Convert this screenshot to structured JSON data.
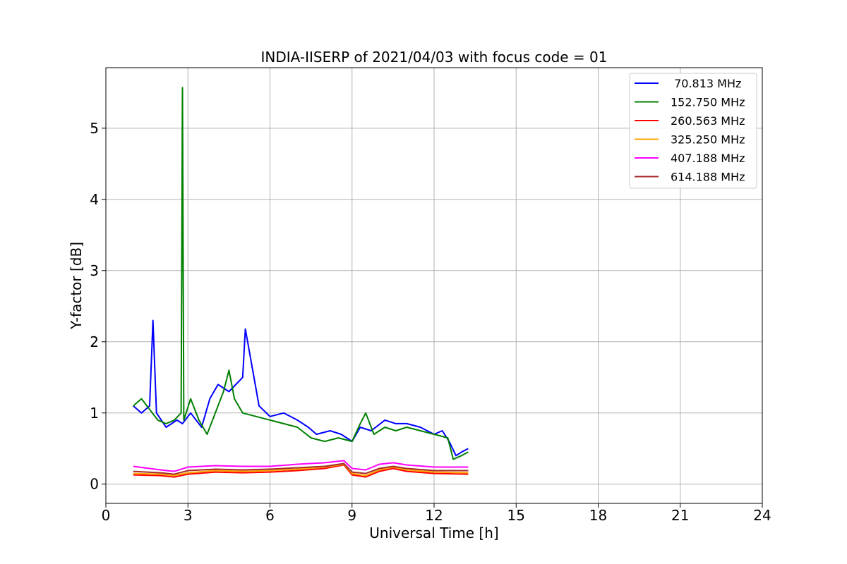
{
  "chart_data": {
    "type": "line",
    "title": "INDIA-IISERP of 2021/04/03 with focus code = 01",
    "xlabel": "Universal Time [h]",
    "ylabel": "Y-factor [dB]",
    "xlim": [
      0,
      24
    ],
    "ylim": [
      -0.27,
      5.85
    ],
    "xticks": [
      0,
      3,
      6,
      9,
      12,
      15,
      18,
      21,
      24
    ],
    "yticks": [
      0,
      1,
      2,
      3,
      4,
      5
    ],
    "grid": true,
    "legend_position": "top-right",
    "series": [
      {
        "name": " 70.813 MHz",
        "color": "#0000ff",
        "x": [
          1.0,
          1.3,
          1.6,
          1.72,
          1.85,
          2.2,
          2.6,
          2.8,
          3.1,
          3.5,
          3.8,
          4.1,
          4.5,
          5.0,
          5.1,
          5.6,
          6.0,
          6.5,
          7.0,
          7.4,
          7.7,
          8.2,
          8.6,
          9.0,
          9.3,
          9.7,
          10.2,
          10.6,
          11.0,
          11.5,
          12.0,
          12.3,
          12.55,
          12.8,
          13.0,
          13.25
        ],
        "y": [
          1.1,
          1.0,
          1.1,
          2.3,
          1.0,
          0.8,
          0.9,
          0.85,
          1.0,
          0.8,
          1.2,
          1.4,
          1.3,
          1.5,
          2.18,
          1.1,
          0.95,
          1.0,
          0.9,
          0.8,
          0.7,
          0.75,
          0.7,
          0.6,
          0.8,
          0.75,
          0.9,
          0.85,
          0.85,
          0.8,
          0.7,
          0.75,
          0.6,
          0.4,
          0.45,
          0.5
        ]
      },
      {
        "name": "152.750 MHz",
        "color": "#008000",
        "x": [
          1.0,
          1.3,
          1.6,
          1.9,
          2.2,
          2.5,
          2.75,
          2.8,
          2.85,
          3.1,
          3.4,
          3.7,
          4.0,
          4.3,
          4.5,
          4.7,
          5.0,
          5.5,
          6.0,
          6.5,
          7.0,
          7.5,
          8.0,
          8.5,
          9.0,
          9.3,
          9.5,
          9.8,
          10.2,
          10.6,
          11.0,
          11.5,
          12.0,
          12.5,
          12.7,
          13.0,
          13.25
        ],
        "y": [
          1.1,
          1.2,
          1.05,
          0.9,
          0.85,
          0.9,
          1.0,
          5.57,
          0.9,
          1.2,
          0.9,
          0.7,
          1.0,
          1.3,
          1.6,
          1.2,
          1.0,
          0.95,
          0.9,
          0.85,
          0.8,
          0.65,
          0.6,
          0.65,
          0.6,
          0.85,
          1.0,
          0.7,
          0.8,
          0.75,
          0.8,
          0.75,
          0.7,
          0.65,
          0.35,
          0.4,
          0.45
        ]
      },
      {
        "name": "260.563 MHz",
        "color": "#ff0000",
        "x": [
          1.0,
          2.0,
          2.5,
          3.0,
          4.0,
          5.0,
          6.0,
          7.0,
          8.0,
          8.7,
          9.0,
          9.5,
          10.0,
          10.5,
          11.0,
          12.0,
          13.25
        ],
        "y": [
          0.13,
          0.12,
          0.1,
          0.14,
          0.17,
          0.16,
          0.17,
          0.19,
          0.22,
          0.27,
          0.13,
          0.1,
          0.18,
          0.22,
          0.18,
          0.15,
          0.14
        ]
      },
      {
        "name": "325.250 MHz",
        "color": "#ffa500",
        "x": [
          1.0,
          2.0,
          2.5,
          3.0,
          4.0,
          5.0,
          6.0,
          7.0,
          8.0,
          8.7,
          9.0,
          9.5,
          10.0,
          10.5,
          11.0,
          12.0,
          13.25
        ],
        "y": [
          0.15,
          0.14,
          0.12,
          0.16,
          0.19,
          0.18,
          0.19,
          0.21,
          0.24,
          0.28,
          0.15,
          0.12,
          0.2,
          0.24,
          0.2,
          0.17,
          0.16
        ]
      },
      {
        "name": "407.188 MHz",
        "color": "#ff00ff",
        "x": [
          1.0,
          2.0,
          2.5,
          3.0,
          4.0,
          5.0,
          6.0,
          7.0,
          8.0,
          8.7,
          9.0,
          9.5,
          10.0,
          10.5,
          11.0,
          12.0,
          13.25
        ],
        "y": [
          0.25,
          0.2,
          0.18,
          0.24,
          0.26,
          0.25,
          0.25,
          0.28,
          0.3,
          0.33,
          0.22,
          0.2,
          0.28,
          0.3,
          0.27,
          0.24,
          0.24
        ]
      },
      {
        "name": "614.188 MHz",
        "color": "#a52a2a",
        "x": [
          1.0,
          2.0,
          2.5,
          3.0,
          4.0,
          5.0,
          6.0,
          7.0,
          8.0,
          8.7,
          9.0,
          9.5,
          10.0,
          10.5,
          11.0,
          12.0,
          13.25
        ],
        "y": [
          0.18,
          0.16,
          0.14,
          0.19,
          0.21,
          0.2,
          0.21,
          0.23,
          0.25,
          0.29,
          0.17,
          0.15,
          0.22,
          0.25,
          0.22,
          0.19,
          0.19
        ]
      }
    ]
  }
}
